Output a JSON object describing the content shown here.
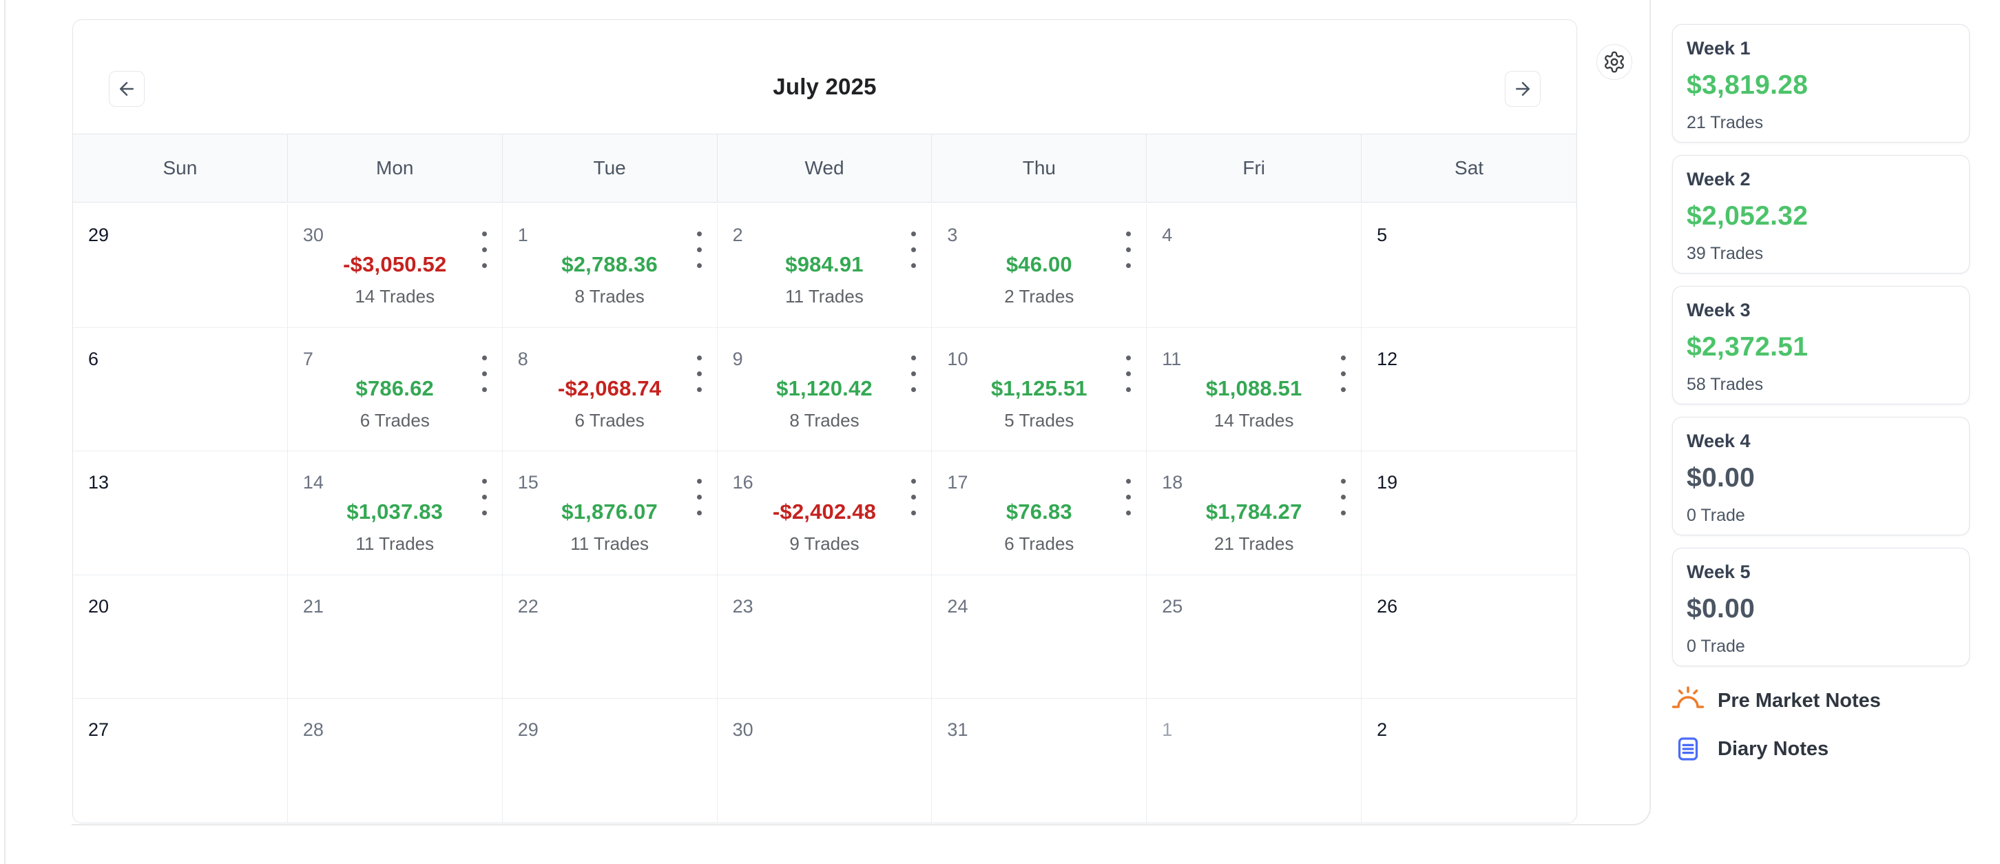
{
  "colors": {
    "positive_day": "#34a853",
    "negative_day": "#c5221f",
    "positive_week": "#4cc36a",
    "neutral_week": "#4b5563",
    "day_dark": "#111827",
    "day_gray": "#6b7280",
    "day_light": "#9ca3af",
    "icon_orange": "#ee7d2c",
    "icon_blue": "#4a6cf8"
  },
  "header": {
    "title": "July 2025",
    "prev_icon": "arrow-left-icon",
    "next_icon": "arrow-right-icon",
    "settings_icon": "gear-icon"
  },
  "day_headers": [
    "Sun",
    "Mon",
    "Tue",
    "Wed",
    "Thu",
    "Fri",
    "Sat"
  ],
  "calendar": {
    "weeks": [
      [
        {
          "day": "29",
          "tone": "dark"
        },
        {
          "day": "30",
          "tone": "gray",
          "pnl": "-$3,050.52",
          "pnl_tone": "negative",
          "trades": "14 Trades"
        },
        {
          "day": "1",
          "tone": "gray",
          "pnl": "$2,788.36",
          "pnl_tone": "positive",
          "trades": "8 Trades"
        },
        {
          "day": "2",
          "tone": "gray",
          "pnl": "$984.91",
          "pnl_tone": "positive",
          "trades": "11 Trades"
        },
        {
          "day": "3",
          "tone": "gray",
          "pnl": "$46.00",
          "pnl_tone": "positive",
          "trades": "2 Trades"
        },
        {
          "day": "4",
          "tone": "gray"
        },
        {
          "day": "5",
          "tone": "dark"
        }
      ],
      [
        {
          "day": "6",
          "tone": "dark"
        },
        {
          "day": "7",
          "tone": "gray",
          "pnl": "$786.62",
          "pnl_tone": "positive",
          "trades": "6 Trades"
        },
        {
          "day": "8",
          "tone": "gray",
          "pnl": "-$2,068.74",
          "pnl_tone": "negative",
          "trades": "6 Trades"
        },
        {
          "day": "9",
          "tone": "gray",
          "pnl": "$1,120.42",
          "pnl_tone": "positive",
          "trades": "8 Trades"
        },
        {
          "day": "10",
          "tone": "gray",
          "pnl": "$1,125.51",
          "pnl_tone": "positive",
          "trades": "5 Trades"
        },
        {
          "day": "11",
          "tone": "gray",
          "pnl": "$1,088.51",
          "pnl_tone": "positive",
          "trades": "14 Trades"
        },
        {
          "day": "12",
          "tone": "dark"
        }
      ],
      [
        {
          "day": "13",
          "tone": "dark"
        },
        {
          "day": "14",
          "tone": "gray",
          "pnl": "$1,037.83",
          "pnl_tone": "positive",
          "trades": "11 Trades"
        },
        {
          "day": "15",
          "tone": "gray",
          "pnl": "$1,876.07",
          "pnl_tone": "positive",
          "trades": "11 Trades"
        },
        {
          "day": "16",
          "tone": "gray",
          "pnl": "-$2,402.48",
          "pnl_tone": "negative",
          "trades": "9 Trades"
        },
        {
          "day": "17",
          "tone": "gray",
          "pnl": "$76.83",
          "pnl_tone": "positive",
          "trades": "6 Trades"
        },
        {
          "day": "18",
          "tone": "gray",
          "pnl": "$1,784.27",
          "pnl_tone": "positive",
          "trades": "21 Trades"
        },
        {
          "day": "19",
          "tone": "dark"
        }
      ],
      [
        {
          "day": "20",
          "tone": "dark"
        },
        {
          "day": "21",
          "tone": "gray"
        },
        {
          "day": "22",
          "tone": "gray"
        },
        {
          "day": "23",
          "tone": "gray"
        },
        {
          "day": "24",
          "tone": "gray"
        },
        {
          "day": "25",
          "tone": "gray"
        },
        {
          "day": "26",
          "tone": "dark"
        }
      ],
      [
        {
          "day": "27",
          "tone": "dark"
        },
        {
          "day": "28",
          "tone": "gray"
        },
        {
          "day": "29",
          "tone": "gray"
        },
        {
          "day": "30",
          "tone": "gray"
        },
        {
          "day": "31",
          "tone": "gray"
        },
        {
          "day": "1",
          "tone": "light"
        },
        {
          "day": "2",
          "tone": "dark"
        }
      ]
    ]
  },
  "weekly_summary": [
    {
      "label": "Week 1",
      "value": "$3,819.28",
      "tone": "positive",
      "trades": "21 Trades"
    },
    {
      "label": "Week 2",
      "value": "$2,052.32",
      "tone": "positive",
      "trades": "39 Trades"
    },
    {
      "label": "Week 3",
      "value": "$2,372.51",
      "tone": "positive",
      "trades": "58 Trades"
    },
    {
      "label": "Week 4",
      "value": "$0.00",
      "tone": "neutral",
      "trades": "0 Trade"
    },
    {
      "label": "Week 5",
      "value": "$0.00",
      "tone": "neutral",
      "trades": "0 Trade"
    }
  ],
  "notes": [
    {
      "label": "Pre Market Notes",
      "icon": "sunrise-icon"
    },
    {
      "label": "Diary Notes",
      "icon": "diary-notes-icon"
    }
  ]
}
